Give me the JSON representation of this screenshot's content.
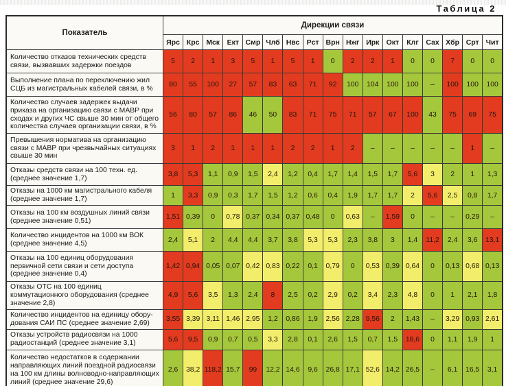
{
  "title": "Таблица 2",
  "colors": {
    "r": "#e23b20",
    "y": "#f2ee6b",
    "g": "#a5c73c"
  },
  "table": {
    "indicator_header": "Показатель",
    "group_header": "Дирекции связи",
    "columns": [
      "Ярс",
      "Крс",
      "Мск",
      "Ект",
      "Смр",
      "Члб",
      "Нвс",
      "Рст",
      "Врн",
      "Нжг",
      "Ирк",
      "Окт",
      "Клг",
      "Сах",
      "Хбр",
      "Срт",
      "Чит"
    ],
    "rows": [
      {
        "label": "Количество отказов технических средств связи, вызвавших задержки поездов",
        "cells": [
          [
            "5",
            "r"
          ],
          [
            "2",
            "r"
          ],
          [
            "1",
            "r"
          ],
          [
            "3",
            "r"
          ],
          [
            "5",
            "r"
          ],
          [
            "1",
            "r"
          ],
          [
            "5",
            "r"
          ],
          [
            "1",
            "r"
          ],
          [
            "0",
            "g"
          ],
          [
            "2",
            "r"
          ],
          [
            "2",
            "r"
          ],
          [
            "1",
            "r"
          ],
          [
            "0",
            "g"
          ],
          [
            "0",
            "g"
          ],
          [
            "7",
            "r"
          ],
          [
            "0",
            "g"
          ],
          [
            "0",
            "g"
          ]
        ]
      },
      {
        "label": "Выполнение плана по переключению жил СЦБ из магистральных кабелей связи, в %",
        "cells": [
          [
            "80",
            "r"
          ],
          [
            "55",
            "r"
          ],
          [
            "100",
            "r"
          ],
          [
            "27",
            "r"
          ],
          [
            "57",
            "r"
          ],
          [
            "83",
            "r"
          ],
          [
            "63",
            "r"
          ],
          [
            "71",
            "r"
          ],
          [
            "92",
            "r"
          ],
          [
            "100",
            "g"
          ],
          [
            "104",
            "g"
          ],
          [
            "100",
            "g"
          ],
          [
            "100",
            "g"
          ],
          [
            "–",
            "g"
          ],
          [
            "100",
            "r"
          ],
          [
            "100",
            "g"
          ],
          [
            "100",
            "g"
          ]
        ]
      },
      {
        "label": "Количество случаев задержек выдачи приказа на организацию связи с МАВР при сходах и других ЧС свыше 30 мин от общего количества случаев организации связи, в %",
        "cells": [
          [
            "56",
            "r"
          ],
          [
            "80",
            "r"
          ],
          [
            "57",
            "r"
          ],
          [
            "86",
            "r"
          ],
          [
            "46",
            "g"
          ],
          [
            "50",
            "g"
          ],
          [
            "83",
            "r"
          ],
          [
            "71",
            "r"
          ],
          [
            "75",
            "r"
          ],
          [
            "71",
            "r"
          ],
          [
            "57",
            "r"
          ],
          [
            "67",
            "r"
          ],
          [
            "100",
            "r"
          ],
          [
            "43",
            "g"
          ],
          [
            "75",
            "r"
          ],
          [
            "69",
            "r"
          ],
          [
            "75",
            "r"
          ]
        ]
      },
      {
        "label": "Превышения норматива на организацию связи с МАВР при чрезвычайных ситуациях свыше 30 мин",
        "cells": [
          [
            "3",
            "r"
          ],
          [
            "1",
            "r"
          ],
          [
            "2",
            "r"
          ],
          [
            "1",
            "r"
          ],
          [
            "1",
            "r"
          ],
          [
            "1",
            "r"
          ],
          [
            "2",
            "r"
          ],
          [
            "2",
            "r"
          ],
          [
            "1",
            "r"
          ],
          [
            "2",
            "r"
          ],
          [
            "–",
            "g"
          ],
          [
            "–",
            "g"
          ],
          [
            "–",
            "g"
          ],
          [
            "–",
            "g"
          ],
          [
            "–",
            "g"
          ],
          [
            "1",
            "r"
          ],
          [
            "–",
            "g"
          ]
        ]
      },
      {
        "label": "Отказы средств связи на 100 техн. ед. (среднее значение 1,7)",
        "cells": [
          [
            "3,8",
            "r"
          ],
          [
            "5,3",
            "r"
          ],
          [
            "1,1",
            "g"
          ],
          [
            "0,9",
            "g"
          ],
          [
            "1,5",
            "g"
          ],
          [
            "2,4",
            "y"
          ],
          [
            "1,2",
            "g"
          ],
          [
            "0,4",
            "g"
          ],
          [
            "1,7",
            "g"
          ],
          [
            "1,4",
            "g"
          ],
          [
            "1,5",
            "g"
          ],
          [
            "1,7",
            "g"
          ],
          [
            "5,6",
            "r"
          ],
          [
            "3",
            "y"
          ],
          [
            "2",
            "g"
          ],
          [
            "1",
            "g"
          ],
          [
            "1,3",
            "g"
          ]
        ]
      },
      {
        "label": "Отказы на 1000 км магистрального кабеля (среднее значение 1,7)",
        "cells": [
          [
            "1",
            "g"
          ],
          [
            "3,3",
            "r"
          ],
          [
            "0,9",
            "g"
          ],
          [
            "0,3",
            "g"
          ],
          [
            "1,7",
            "g"
          ],
          [
            "1,5",
            "g"
          ],
          [
            "1,2",
            "g"
          ],
          [
            "0,6",
            "g"
          ],
          [
            "0,4",
            "g"
          ],
          [
            "1,9",
            "g"
          ],
          [
            "1,7",
            "g"
          ],
          [
            "1,7",
            "g"
          ],
          [
            "2",
            "y"
          ],
          [
            "5,6",
            "r"
          ],
          [
            "2,5",
            "y"
          ],
          [
            "0,8",
            "g"
          ],
          [
            "1,7",
            "g"
          ]
        ]
      },
      {
        "label": "Отказы  на 100 км воздушных линий связи (среднее значение 0,51)",
        "cells": [
          [
            "1,51",
            "r"
          ],
          [
            "0,39",
            "g"
          ],
          [
            "0",
            "g"
          ],
          [
            "0,78",
            "y"
          ],
          [
            "0,37",
            "g"
          ],
          [
            "0,34",
            "g"
          ],
          [
            "0,37",
            "g"
          ],
          [
            "0,48",
            "g"
          ],
          [
            "0",
            "g"
          ],
          [
            "0,63",
            "y"
          ],
          [
            "–",
            "g"
          ],
          [
            "1,59",
            "r"
          ],
          [
            "0",
            "g"
          ],
          [
            "–",
            "g"
          ],
          [
            "–",
            "g"
          ],
          [
            "0,29",
            "g"
          ],
          [
            "–",
            "g"
          ]
        ]
      },
      {
        "label": "Количество инцидентов на 1000 км ВОК (среднее значение 4,5)",
        "cells": [
          [
            "2,4",
            "g"
          ],
          [
            "5,1",
            "y"
          ],
          [
            "2",
            "g"
          ],
          [
            "4,4",
            "g"
          ],
          [
            "4,4",
            "g"
          ],
          [
            "3,7",
            "g"
          ],
          [
            "3,8",
            "g"
          ],
          [
            "5,3",
            "y"
          ],
          [
            "5,3",
            "y"
          ],
          [
            "2,3",
            "g"
          ],
          [
            "3,8",
            "g"
          ],
          [
            "3",
            "g"
          ],
          [
            "1,4",
            "g"
          ],
          [
            "11,2",
            "r"
          ],
          [
            "2,4",
            "g"
          ],
          [
            "3,6",
            "g"
          ],
          [
            "13,1",
            "r"
          ]
        ]
      },
      {
        "label": "Отказы на 100 единиц оборудования первичной сети связи и сети доступа (среднее значение 0,4)",
        "cells": [
          [
            "1,42",
            "r"
          ],
          [
            "0,94",
            "r"
          ],
          [
            "0,05",
            "g"
          ],
          [
            "0,07",
            "g"
          ],
          [
            "0,42",
            "y"
          ],
          [
            "0,83",
            "y"
          ],
          [
            "0,22",
            "g"
          ],
          [
            "0,1",
            "g"
          ],
          [
            "0,79",
            "y"
          ],
          [
            "0",
            "g"
          ],
          [
            "0,53",
            "y"
          ],
          [
            "0,39",
            "g"
          ],
          [
            "0,64",
            "y"
          ],
          [
            "0",
            "g"
          ],
          [
            "0,13",
            "g"
          ],
          [
            "0,68",
            "y"
          ],
          [
            "0,13",
            "g"
          ]
        ]
      },
      {
        "label": "Отказы ОТС на 100 единиц коммутационного оборудования (среднее значение 2,8)",
        "cells": [
          [
            "4,9",
            "r"
          ],
          [
            "5,6",
            "r"
          ],
          [
            "3,5",
            "y"
          ],
          [
            "1,3",
            "g"
          ],
          [
            "2,4",
            "g"
          ],
          [
            "8",
            "r"
          ],
          [
            "2,5",
            "g"
          ],
          [
            "0,2",
            "g"
          ],
          [
            "2,9",
            "y"
          ],
          [
            "0,2",
            "g"
          ],
          [
            "3,4",
            "y"
          ],
          [
            "2,3",
            "g"
          ],
          [
            "4,8",
            "y"
          ],
          [
            "0",
            "g"
          ],
          [
            "1",
            "g"
          ],
          [
            "2,1",
            "g"
          ],
          [
            "1,8",
            "g"
          ]
        ]
      },
      {
        "label": "Количество инцидентов на единицу обору-дования САИ ПС (среднее значение 2,69)",
        "cells": [
          [
            "3,55",
            "r"
          ],
          [
            "3,39",
            "y"
          ],
          [
            "3,11",
            "y"
          ],
          [
            "1,46",
            "y"
          ],
          [
            "2,95",
            "y"
          ],
          [
            "1,2",
            "g"
          ],
          [
            "0,86",
            "g"
          ],
          [
            "1,9",
            "g"
          ],
          [
            "2,56",
            "y"
          ],
          [
            "2,28",
            "g"
          ],
          [
            "9,56",
            "r"
          ],
          [
            "2",
            "g"
          ],
          [
            "1,43",
            "g"
          ],
          [
            "–",
            "g"
          ],
          [
            "3,29",
            "y"
          ],
          [
            "0,93",
            "g"
          ],
          [
            "2,61",
            "y"
          ]
        ]
      },
      {
        "label": "Отказы устройств радиосвязи на 1000 радиостанций (среднее значение 3,1)",
        "cells": [
          [
            "5,6",
            "r"
          ],
          [
            "9,5",
            "r"
          ],
          [
            "0,9",
            "g"
          ],
          [
            "0,7",
            "g"
          ],
          [
            "0,5",
            "g"
          ],
          [
            "3,3",
            "y"
          ],
          [
            "2,8",
            "g"
          ],
          [
            "0,1",
            "g"
          ],
          [
            "2,6",
            "g"
          ],
          [
            "1,5",
            "g"
          ],
          [
            "0,7",
            "g"
          ],
          [
            "1,5",
            "g"
          ],
          [
            "18,6",
            "r"
          ],
          [
            "0",
            "g"
          ],
          [
            "1,1",
            "g"
          ],
          [
            "1,9",
            "g"
          ],
          [
            "1",
            "g"
          ]
        ]
      },
      {
        "label": "Количество недостатков в содержании направляющих линий поездной радиосвязи на 100 км длины волноводно-направляющих линий (среднее значение 29,6)",
        "cells": [
          [
            "2,6",
            "g"
          ],
          [
            "38,2",
            "y"
          ],
          [
            "118,2",
            "r"
          ],
          [
            "15,7",
            "g"
          ],
          [
            "99",
            "r"
          ],
          [
            "12,2",
            "g"
          ],
          [
            "14,6",
            "g"
          ],
          [
            "9,6",
            "g"
          ],
          [
            "26,8",
            "g"
          ],
          [
            "17,1",
            "g"
          ],
          [
            "52,6",
            "y"
          ],
          [
            "14,2",
            "g"
          ],
          [
            "26,5",
            "g"
          ],
          [
            "–",
            "g"
          ],
          [
            "6,1",
            "g"
          ],
          [
            "16,5",
            "g"
          ],
          [
            "3,1",
            "g"
          ]
        ]
      }
    ]
  }
}
